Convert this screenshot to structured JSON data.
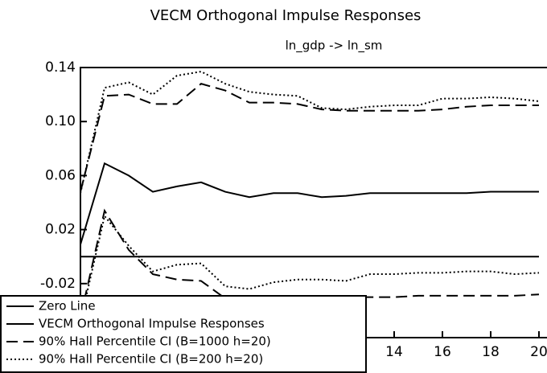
{
  "chart_data": {
    "type": "line",
    "title": "VECM Orthogonal Impulse Responses",
    "subtitle": "ln_gdp -> ln_sm",
    "x": [
      1,
      2,
      3,
      4,
      5,
      6,
      7,
      8,
      9,
      10,
      11,
      12,
      13,
      14,
      15,
      16,
      17,
      18,
      19,
      20
    ],
    "xlim": [
      1,
      20
    ],
    "xticks": [
      14,
      16,
      18,
      20
    ],
    "ylim": [
      -0.06,
      0.14
    ],
    "yticks": [
      0.14,
      {
        "value": 0.1,
        "label": "0.10"
      },
      0.06,
      0.02,
      -0.02
    ],
    "legend": "lower left",
    "series": [
      {
        "name": "Zero Line",
        "color": "#000000",
        "dash": "solid",
        "values": [
          0,
          0,
          0,
          0,
          0,
          0,
          0,
          0,
          0,
          0,
          0,
          0,
          0,
          0,
          0,
          0,
          0,
          0,
          0,
          0
        ]
      },
      {
        "name": "VECM Orthogonal Impulse Responses",
        "color": "#000000",
        "dash": "solid",
        "values": [
          0.009,
          0.069,
          0.06,
          0.048,
          0.052,
          0.055,
          0.048,
          0.044,
          0.047,
          0.047,
          0.044,
          0.045,
          0.047,
          0.047,
          0.047,
          0.047,
          0.047,
          0.048,
          0.048,
          0.048
        ]
      },
      {
        "name": "90% Hall Percentile CI (B=1000 h=20)",
        "color": "#000000",
        "dash": "dashed",
        "upper": [
          0.048,
          0.119,
          0.12,
          0.113,
          0.113,
          0.128,
          0.123,
          0.114,
          0.114,
          0.113,
          0.109,
          0.108,
          0.108,
          0.108,
          0.108,
          0.109,
          0.111,
          0.112,
          0.112,
          0.112
        ],
        "lower": [
          -0.045,
          0.034,
          0.005,
          -0.013,
          -0.017,
          -0.018,
          -0.031,
          -0.031,
          -0.031,
          -0.03,
          -0.03,
          -0.03,
          -0.03,
          -0.03,
          -0.029,
          -0.029,
          -0.029,
          -0.029,
          -0.029,
          -0.028
        ]
      },
      {
        "name": "90% Hall Percentile CI (B=200 h=20)",
        "color": "#000000",
        "dash": "dotted",
        "upper": [
          0.047,
          0.125,
          0.129,
          0.12,
          0.134,
          0.137,
          0.128,
          0.122,
          0.12,
          0.119,
          0.11,
          0.109,
          0.111,
          0.112,
          0.112,
          0.117,
          0.117,
          0.118,
          0.117,
          0.115
        ],
        "lower": [
          -0.048,
          0.03,
          0.008,
          -0.011,
          -0.006,
          -0.005,
          -0.022,
          -0.024,
          -0.019,
          -0.017,
          -0.017,
          -0.018,
          -0.013,
          -0.013,
          -0.012,
          -0.012,
          -0.011,
          -0.011,
          -0.013,
          -0.012
        ]
      }
    ]
  }
}
